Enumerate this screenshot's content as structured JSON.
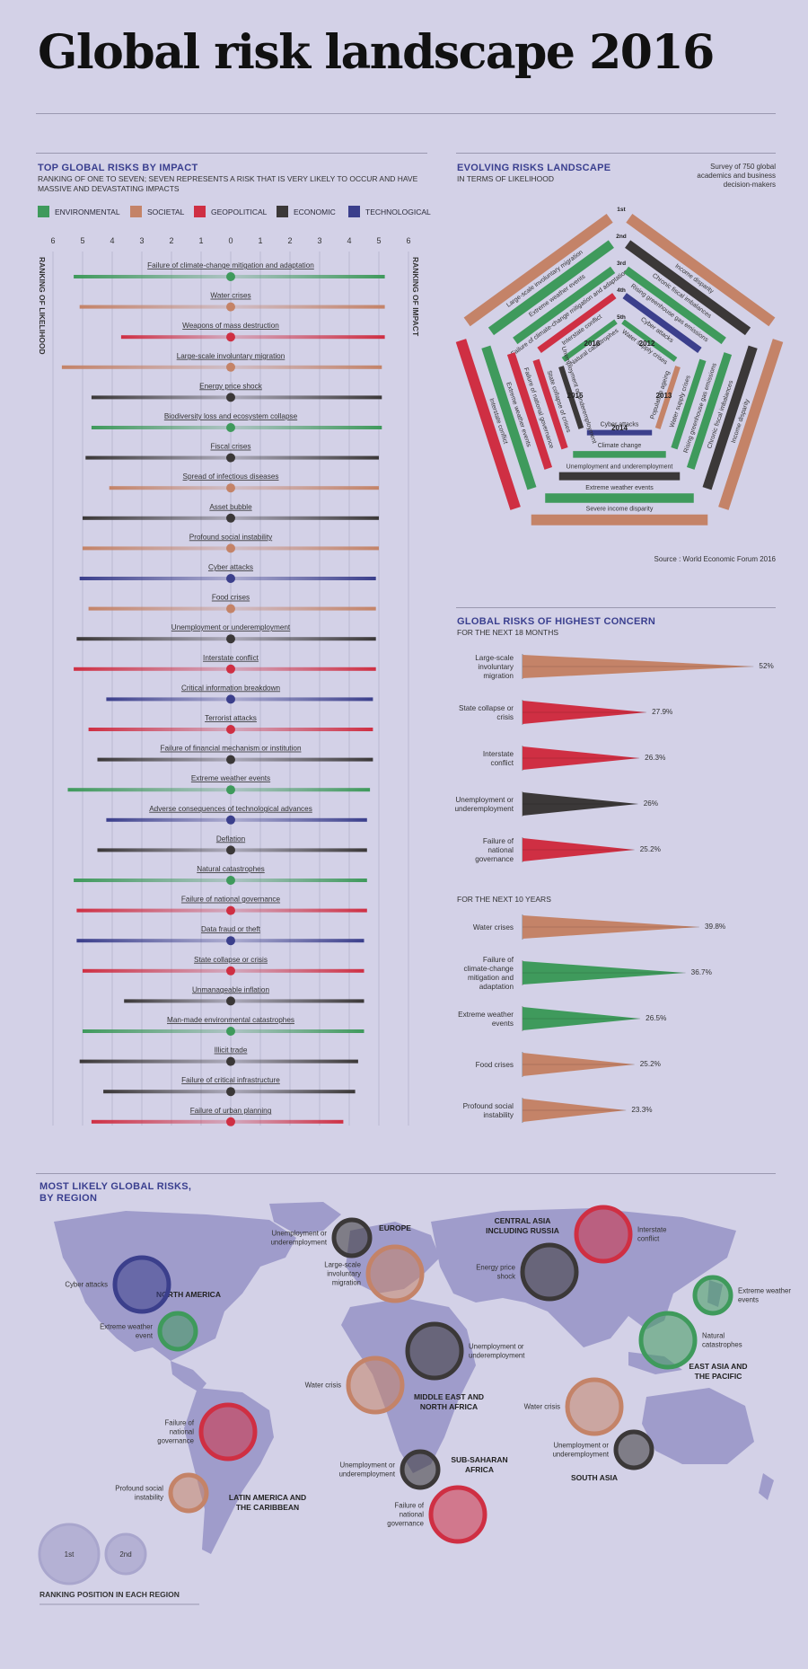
{
  "title": "Global risk landscape 2016",
  "colors": {
    "environmental": "#3f9a5c",
    "societal": "#c48368",
    "geopolitical": "#cf2f43",
    "economic": "#3b3838",
    "technological": "#3b3f8c"
  },
  "impact_section": {
    "title": "TOP GLOBAL RISKS BY IMPACT",
    "subtitle_line1": "RANKING OF ONE TO SEVEN; SEVEN REPRESENTS A RISK THAT IS VERY LIKELY TO OCCUR AND HAVE",
    "subtitle_line2": "MASSIVE AND DEVASTATING IMPACTS",
    "left_axis_label": "RANKING OF LIKELIHOOD",
    "right_axis_label": "RANKING OF IMPACT",
    "legend": [
      {
        "label": "ENVIRONMENTAL",
        "key": "environmental"
      },
      {
        "label": "SOCIETAL",
        "key": "societal"
      },
      {
        "label": "GEOPOLITICAL",
        "key": "geopolitical"
      },
      {
        "label": "ECONOMIC",
        "key": "economic"
      },
      {
        "label": "TECHNOLOGICAL",
        "key": "technological"
      }
    ]
  },
  "evolving_section": {
    "title": "EVOLVING RISKS LANDSCAPE",
    "subtitle": "IN TERMS OF LIKELIHOOD",
    "note_line1": "Survey of 750 global",
    "note_line2": "academics and business",
    "note_line3": "decision-makers",
    "source": "Source : World Economic Forum 2016",
    "rank_labels": [
      "1st",
      "2nd",
      "3rd",
      "4th",
      "5th"
    ],
    "years": [
      "2016",
      "2015",
      "2014",
      "2013",
      "2012"
    ]
  },
  "concern_section": {
    "title": "GLOBAL RISKS OF HIGHEST CONCERN",
    "sub_18m": "FOR THE NEXT 18 MONTHS",
    "sub_10y": "FOR THE NEXT 10 YEARS"
  },
  "region_section": {
    "title_line1": "MOST LIKELY GLOBAL RISKS,",
    "title_line2": "BY REGION",
    "legend_first": "1st",
    "legend_second": "2nd",
    "legend_caption": "RANKING POSITION IN EACH REGION"
  },
  "chart_data": [
    {
      "type": "bar",
      "name": "impact_likelihood",
      "x_ticks_left": [
        6,
        5,
        4,
        3,
        2,
        1,
        0
      ],
      "x_ticks_right": [
        1,
        2,
        3,
        4,
        5,
        6
      ],
      "risks": [
        {
          "label": "Failure of climate-change mitigation and adaptation",
          "cat": "environmental",
          "likelihood": 5.3,
          "impact": 5.2
        },
        {
          "label": "Water crises",
          "cat": "societal",
          "likelihood": 5.1,
          "impact": 5.2
        },
        {
          "label": "Weapons of mass destruction",
          "cat": "geopolitical",
          "likelihood": 3.7,
          "impact": 5.2
        },
        {
          "label": "Large-scale involuntary migration",
          "cat": "societal",
          "likelihood": 5.7,
          "impact": 5.1
        },
        {
          "label": "Energy price shock",
          "cat": "economic",
          "likelihood": 4.7,
          "impact": 5.1
        },
        {
          "label": "Biodiversity loss and ecosystem collapse",
          "cat": "environmental",
          "likelihood": 4.7,
          "impact": 5.1
        },
        {
          "label": "Fiscal crises",
          "cat": "economic",
          "likelihood": 4.9,
          "impact": 5.0
        },
        {
          "label": "Spread of infectious diseases",
          "cat": "societal",
          "likelihood": 4.1,
          "impact": 5.0
        },
        {
          "label": "Asset bubble",
          "cat": "economic",
          "likelihood": 5.0,
          "impact": 5.0
        },
        {
          "label": "Profound social instability",
          "cat": "societal",
          "likelihood": 5.0,
          "impact": 5.0
        },
        {
          "label": "Cyber attacks",
          "cat": "technological",
          "likelihood": 5.1,
          "impact": 4.9
        },
        {
          "label": "Food crises",
          "cat": "societal",
          "likelihood": 4.8,
          "impact": 4.9
        },
        {
          "label": "Unemployment or underemployment",
          "cat": "economic",
          "likelihood": 5.2,
          "impact": 4.9
        },
        {
          "label": "Interstate conflict",
          "cat": "geopolitical",
          "likelihood": 5.3,
          "impact": 4.9
        },
        {
          "label": "Critical information breakdown",
          "cat": "technological",
          "likelihood": 4.2,
          "impact": 4.8
        },
        {
          "label": "Terrorist attacks",
          "cat": "geopolitical",
          "likelihood": 4.8,
          "impact": 4.8
        },
        {
          "label": "Failure of financial mechanism or institution",
          "cat": "economic",
          "likelihood": 4.5,
          "impact": 4.8
        },
        {
          "label": "Extreme weather events",
          "cat": "environmental",
          "likelihood": 5.5,
          "impact": 4.7
        },
        {
          "label": "Adverse consequences of technological advances",
          "cat": "technological",
          "likelihood": 4.2,
          "impact": 4.6
        },
        {
          "label": "Deflation",
          "cat": "economic",
          "likelihood": 4.5,
          "impact": 4.6
        },
        {
          "label": "Natural catastrophes",
          "cat": "environmental",
          "likelihood": 5.3,
          "impact": 4.6
        },
        {
          "label": "Failure of national governance",
          "cat": "geopolitical",
          "likelihood": 5.2,
          "impact": 4.6
        },
        {
          "label": "Data fraud or theft",
          "cat": "technological",
          "likelihood": 5.2,
          "impact": 4.5
        },
        {
          "label": "State collapse or crisis",
          "cat": "geopolitical",
          "likelihood": 5.0,
          "impact": 4.5
        },
        {
          "label": "Unmanageable inflation",
          "cat": "economic",
          "likelihood": 3.6,
          "impact": 4.5
        },
        {
          "label": "Man-made environmental catastrophes",
          "cat": "environmental",
          "likelihood": 5.0,
          "impact": 4.5
        },
        {
          "label": "Illicit trade",
          "cat": "economic",
          "likelihood": 5.1,
          "impact": 4.3
        },
        {
          "label": "Failure of critical infrastructure",
          "cat": "economic",
          "likelihood": 4.3,
          "impact": 4.2
        },
        {
          "label": "Failure of urban planning",
          "cat": "geopolitical",
          "likelihood": 4.7,
          "impact": 3.8
        }
      ]
    },
    {
      "type": "bar",
      "name": "evolving_risks",
      "segments": [
        {
          "year": "2016",
          "rank": 1,
          "label": "Large-scale involuntary migration",
          "cat": "societal"
        },
        {
          "year": "2016",
          "rank": 2,
          "label": "Extreme weather events",
          "cat": "environmental"
        },
        {
          "year": "2016",
          "rank": 3,
          "label": "Failure of climate-change mitigation and adaptation",
          "cat": "environmental"
        },
        {
          "year": "2016",
          "rank": 4,
          "label": "Interstate conflict",
          "cat": "geopolitical"
        },
        {
          "year": "2016",
          "rank": 5,
          "label": "Natural catastrophes",
          "cat": "environmental"
        },
        {
          "year": "2012",
          "rank": 1,
          "label": "Income disparity",
          "cat": "societal"
        },
        {
          "year": "2012",
          "rank": 2,
          "label": "Chronic fiscal imbalances",
          "cat": "economic"
        },
        {
          "year": "2012",
          "rank": 3,
          "label": "Rising greenhouse gas emissions",
          "cat": "environmental"
        },
        {
          "year": "2012",
          "rank": 4,
          "label": "Cyber attacks",
          "cat": "technological"
        },
        {
          "year": "2012",
          "rank": 5,
          "label": "Water supply crises",
          "cat": "environmental"
        },
        {
          "year": "2013",
          "rank": 1,
          "label": "Income disparity",
          "cat": "societal"
        },
        {
          "year": "2013",
          "rank": 2,
          "label": "Chronic fiscal imbalances",
          "cat": "economic"
        },
        {
          "year": "2013",
          "rank": 3,
          "label": "Rising greenhouse gas emissions",
          "cat": "environmental"
        },
        {
          "year": "2013",
          "rank": 4,
          "label": "Water supply crises",
          "cat": "environmental"
        },
        {
          "year": "2013",
          "rank": 5,
          "label": "Population ageing",
          "cat": "societal"
        },
        {
          "year": "2014",
          "rank": 1,
          "label": "Severe income disparity",
          "cat": "societal"
        },
        {
          "year": "2014",
          "rank": 2,
          "label": "Extreme weather events",
          "cat": "environmental"
        },
        {
          "year": "2014",
          "rank": 3,
          "label": "Unemployment and underemployment",
          "cat": "economic"
        },
        {
          "year": "2014",
          "rank": 4,
          "label": "Climate change",
          "cat": "environmental"
        },
        {
          "year": "2014",
          "rank": 5,
          "label": "Cyber attacks",
          "cat": "technological"
        },
        {
          "year": "2015",
          "rank": 1,
          "label": "Interstate conflict",
          "cat": "geopolitical"
        },
        {
          "year": "2015",
          "rank": 2,
          "label": "Extreme weather events",
          "cat": "environmental"
        },
        {
          "year": "2015",
          "rank": 3,
          "label": "Failure of national governance",
          "cat": "geopolitical"
        },
        {
          "year": "2015",
          "rank": 4,
          "label": "State collapse of crises",
          "cat": "geopolitical"
        },
        {
          "year": "2015",
          "rank": 5,
          "label": "Unemployment or underemployment",
          "cat": "economic"
        }
      ]
    },
    {
      "type": "bar",
      "name": "highest_concern_18_months",
      "unit": "%",
      "items": [
        {
          "label": "Large-scale involuntary migration",
          "value": 52,
          "display": "52%",
          "cat": "societal"
        },
        {
          "label": "State collapse or crisis",
          "value": 27.9,
          "display": "27.9%",
          "cat": "geopolitical"
        },
        {
          "label": "Interstate conflict",
          "value": 26.3,
          "display": "26.3%",
          "cat": "geopolitical"
        },
        {
          "label": "Unemployment or underemployment",
          "value": 26,
          "display": "26%",
          "cat": "economic"
        },
        {
          "label": "Failure of national governance",
          "value": 25.2,
          "display": "25.2%",
          "cat": "geopolitical"
        }
      ]
    },
    {
      "type": "bar",
      "name": "highest_concern_10_years",
      "unit": "%",
      "items": [
        {
          "label": "Water crises",
          "value": 39.8,
          "display": "39.8%",
          "cat": "societal"
        },
        {
          "label": "Failure of climate-change mitigation and adaptation",
          "value": 36.7,
          "display": "36.7%",
          "cat": "environmental"
        },
        {
          "label": "Extreme weather events",
          "value": 26.5,
          "display": "26.5%",
          "cat": "environmental"
        },
        {
          "label": "Food crises",
          "value": 25.2,
          "display": "25.2%",
          "cat": "societal"
        },
        {
          "label": "Profound social instability",
          "value": 23.3,
          "display": "23.3%",
          "cat": "societal"
        }
      ]
    },
    {
      "type": "scatter",
      "name": "regional_risks",
      "regions": [
        {
          "region": "NORTH AMERICA",
          "risks": [
            {
              "label": "Cyber attacks",
              "cat": "technological",
              "rank": 1
            },
            {
              "label": "Extreme weather event",
              "cat": "environmental",
              "rank": 2
            }
          ]
        },
        {
          "region": "EUROPE",
          "risks": [
            {
              "label": "Large-scale involuntary migration",
              "cat": "societal",
              "rank": 1
            },
            {
              "label": "Unemployment or underemployment",
              "cat": "economic",
              "rank": 2
            }
          ]
        },
        {
          "region": "CENTRAL ASIA INCLUDING RUSSIA",
          "risks": [
            {
              "label": "Energy price shock",
              "cat": "economic",
              "rank": 1
            },
            {
              "label": "Interstate conflict",
              "cat": "geopolitical",
              "rank": 1
            }
          ]
        },
        {
          "region": "EAST ASIA AND THE PACIFIC",
          "risks": [
            {
              "label": "Natural catastrophes",
              "cat": "environmental",
              "rank": 1
            },
            {
              "label": "Extreme weather events",
              "cat": "environmental",
              "rank": 2
            }
          ]
        },
        {
          "region": "MIDDLE EAST AND NORTH AFRICA",
          "risks": [
            {
              "label": "Water crisis",
              "cat": "societal",
              "rank": 1
            },
            {
              "label": "Unemployment or underemployment",
              "cat": "economic",
              "rank": 1
            }
          ]
        },
        {
          "region": "SOUTH ASIA",
          "risks": [
            {
              "label": "Water crisis",
              "cat": "societal",
              "rank": 1
            },
            {
              "label": "Unemployment or underemployment",
              "cat": "economic",
              "rank": 2
            }
          ]
        },
        {
          "region": "SUB-SAHARAN AFRICA",
          "risks": [
            {
              "label": "Failure of national governance",
              "cat": "geopolitical",
              "rank": 1
            },
            {
              "label": "Unemployment or underemployment",
              "cat": "economic",
              "rank": 2
            }
          ]
        },
        {
          "region": "LATIN AMERICA AND THE CARIBBEAN",
          "risks": [
            {
              "label": "Failure of national governance",
              "cat": "geopolitical",
              "rank": 1
            },
            {
              "label": "Profound social instability",
              "cat": "societal",
              "rank": 2
            }
          ]
        }
      ]
    }
  ]
}
